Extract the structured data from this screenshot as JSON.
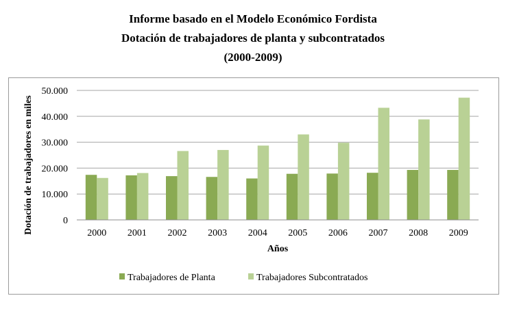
{
  "title": {
    "line1": "Informe basado en el Modelo Económico Fordista",
    "line2": "Dotación de trabajadores de planta y subcontratados",
    "line3": "(2000-2009)"
  },
  "chart_data": {
    "type": "bar",
    "categories": [
      "2000",
      "2001",
      "2002",
      "2003",
      "2004",
      "2005",
      "2006",
      "2007",
      "2008",
      "2009"
    ],
    "series": [
      {
        "name": "Trabajadores de Planta",
        "color": "#8aaa53",
        "values": [
          17400,
          17200,
          16900,
          16600,
          16000,
          17800,
          17900,
          18200,
          19300,
          19300
        ]
      },
      {
        "name": "Trabajadores Subcontratados",
        "color": "#b9d195",
        "values": [
          16200,
          18100,
          26600,
          27000,
          28700,
          33000,
          29800,
          43300,
          38800,
          47200
        ]
      }
    ],
    "xlabel": "Años",
    "ylabel": "Dotación de trabajadores en miles",
    "ylim": [
      0,
      50000
    ],
    "yticks": [
      {
        "value": 0,
        "label": "0"
      },
      {
        "value": 10000,
        "label": "10.000"
      },
      {
        "value": 20000,
        "label": "20.000"
      },
      {
        "value": 30000,
        "label": "30.000"
      },
      {
        "value": 40000,
        "label": "40.000"
      },
      {
        "value": 50000,
        "label": "50.000"
      }
    ],
    "grid": true,
    "legend": "bottom"
  }
}
